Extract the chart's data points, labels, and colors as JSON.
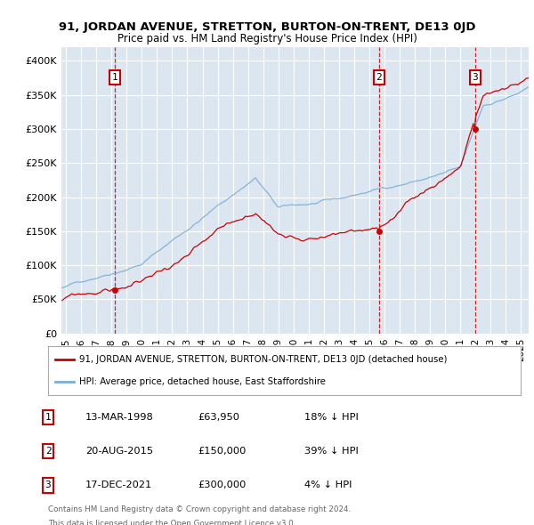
{
  "title_line1": "91, JORDAN AVENUE, STRETTON, BURTON-ON-TRENT, DE13 0JD",
  "title_line2": "Price paid vs. HM Land Registry's House Price Index (HPI)",
  "background_color": "#ffffff",
  "plot_bg_color": "#dce6f1",
  "grid_color": "#ffffff",
  "hpi_color": "#7bafd4",
  "price_color": "#cc0000",
  "ylim": [
    0,
    420000
  ],
  "yticks": [
    0,
    50000,
    100000,
    150000,
    200000,
    250000,
    300000,
    350000,
    400000
  ],
  "ytick_labels": [
    "£0",
    "£50K",
    "£100K",
    "£150K",
    "£200K",
    "£250K",
    "£300K",
    "£350K",
    "£400K"
  ],
  "sale_t": [
    1998.2055,
    2015.6356,
    2021.9616
  ],
  "sale_prices": [
    63950,
    150000,
    300000
  ],
  "sale_labels": [
    "1",
    "2",
    "3"
  ],
  "legend_price_label": "91, JORDAN AVENUE, STRETTON, BURTON-ON-TRENT, DE13 0JD (detached house)",
  "legend_hpi_label": "HPI: Average price, detached house, East Staffordshire",
  "table_rows": [
    [
      "1",
      "13-MAR-1998",
      "£63,950",
      "18% ↓ HPI"
    ],
    [
      "2",
      "20-AUG-2015",
      "£150,000",
      "39% ↓ HPI"
    ],
    [
      "3",
      "17-DEC-2021",
      "£300,000",
      "4% ↓ HPI"
    ]
  ],
  "footnote1": "Contains HM Land Registry data © Crown copyright and database right 2024.",
  "footnote2": "This data is licensed under the Open Government Licence v3.0.",
  "xmin": 1994.7,
  "xmax": 2025.5,
  "xticks_start": 1995,
  "xticks_end": 2025
}
